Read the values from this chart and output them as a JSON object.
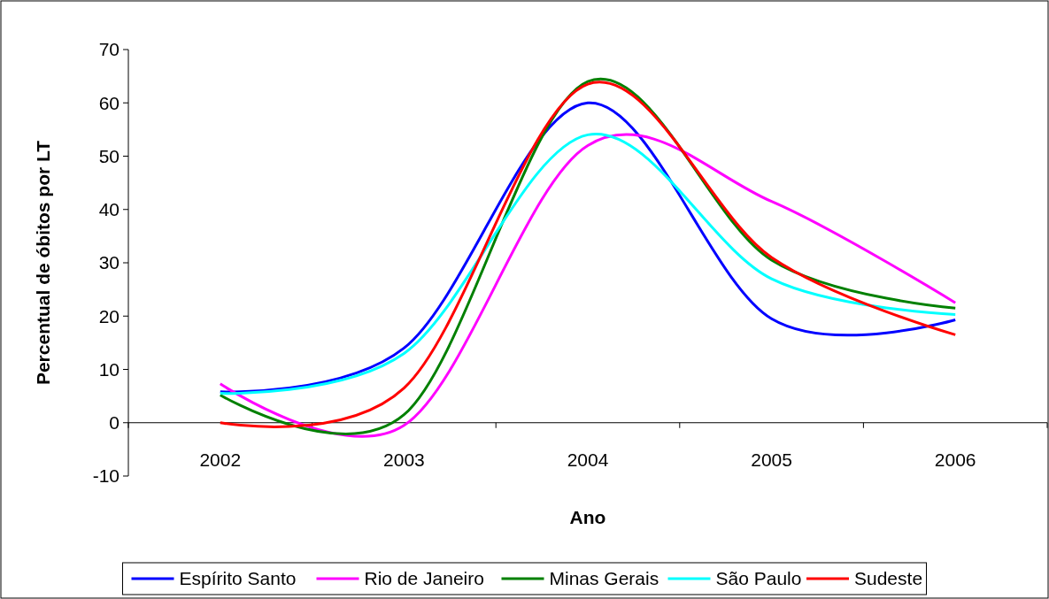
{
  "chart_data": {
    "type": "line",
    "xlabel": "Ano",
    "ylabel": "Percentual de óbitos por LT",
    "categories": [
      "2002",
      "2003",
      "2004",
      "2005",
      "2006"
    ],
    "ylim": [
      -10,
      70
    ],
    "yticks": [
      -10,
      0,
      10,
      20,
      30,
      40,
      50,
      60,
      70
    ],
    "grid": false,
    "legend": "bottom",
    "marker": "none",
    "line_style": "solid",
    "series": [
      {
        "name": "Espírito Santo",
        "color": "#0000ff",
        "values": [
          5.8,
          14,
          60,
          19.5,
          19.3
        ]
      },
      {
        "name": "Rio de Janeiro",
        "color": "#ff00ff",
        "values": [
          7.3,
          -0.5,
          52,
          41.5,
          22.5
        ]
      },
      {
        "name": "Minas Gerais",
        "color": "#008000",
        "values": [
          5.2,
          1.5,
          64,
          30.5,
          21.5
        ]
      },
      {
        "name": "São Paulo",
        "color": "#00ffff",
        "values": [
          5.5,
          13,
          54,
          27,
          20.3
        ]
      },
      {
        "name": "Sudeste",
        "color": "#ff0000",
        "values": [
          0,
          6.5,
          63.5,
          31,
          16.5
        ]
      }
    ]
  }
}
